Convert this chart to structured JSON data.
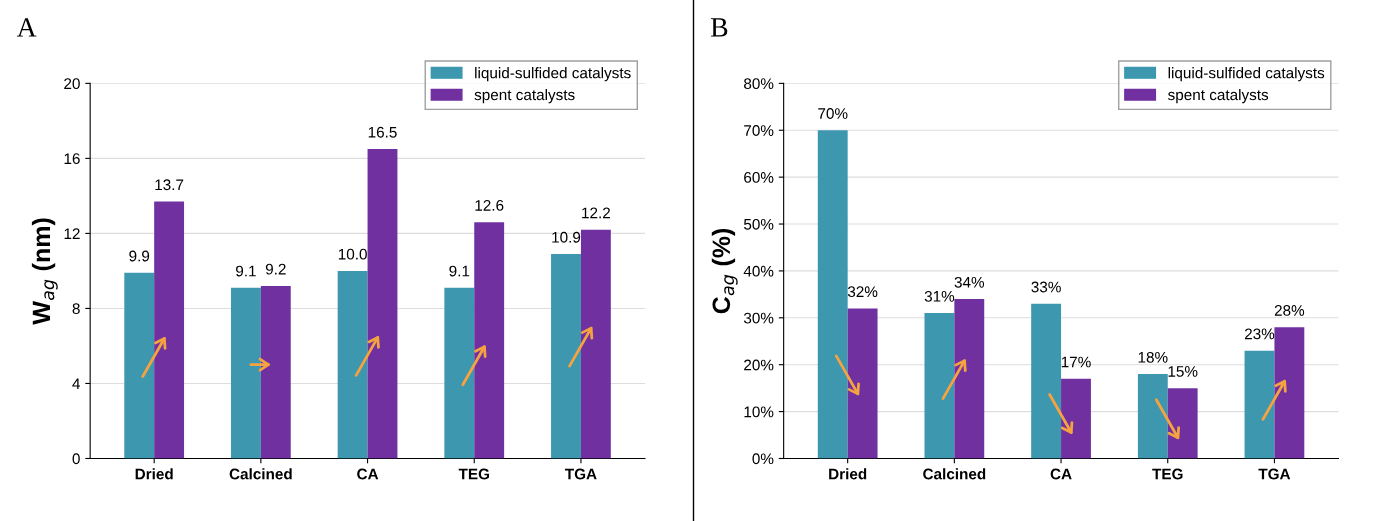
{
  "chart_data": [
    {
      "type": "bar",
      "title": "A",
      "ylabel": "W$_{ag}$ (nm)",
      "categories": [
        "Dried",
        "Calcined",
        "CA",
        "TEG",
        "TGA"
      ],
      "series": [
        {
          "name": "liquid-sulfided catalysts",
          "color": "#3d97ae",
          "values": [
            9.9,
            9.1,
            10.0,
            9.1,
            10.9
          ],
          "value_labels": [
            "9.9",
            "9.1",
            "10.0",
            "9.1",
            "10.9"
          ]
        },
        {
          "name": "spent catalysts",
          "color": "#7030a0",
          "values": [
            13.7,
            9.2,
            16.5,
            12.6,
            12.2
          ],
          "value_labels": [
            "13.7",
            "9.2",
            "16.5",
            "12.6",
            "12.2"
          ]
        }
      ],
      "ylim": [
        0,
        20
      ],
      "yticks": [
        0,
        4,
        8,
        12,
        16,
        20
      ],
      "grid": "y",
      "legend": "top right"
    },
    {
      "type": "bar",
      "title": "B",
      "ylabel": "C$_{ag}$ (%)",
      "categories": [
        "Dried",
        "Calcined",
        "CA",
        "TEG",
        "TGA"
      ],
      "series": [
        {
          "name": "liquid-sulfided catalysts",
          "color": "#3d97ae",
          "values": [
            70,
            31,
            33,
            18,
            23
          ],
          "value_labels": [
            "70%",
            "31%",
            "33%",
            "18%",
            "23%"
          ]
        },
        {
          "name": "spent catalysts",
          "color": "#7030a0",
          "values": [
            32,
            34,
            17,
            15,
            28
          ],
          "value_labels": [
            "32%",
            "34%",
            "17%",
            "15%",
            "28%"
          ]
        }
      ],
      "ylim": [
        0,
        80
      ],
      "yticks": [
        {
          "value": 0,
          "label": "0%"
        },
        {
          "value": 10,
          "label": "10%"
        },
        {
          "value": 20,
          "label": "20%"
        },
        {
          "value": 30,
          "label": "30%"
        },
        {
          "value": 40,
          "label": "40%"
        },
        {
          "value": 50,
          "label": "50%"
        },
        {
          "value": 60,
          "label": "60%"
        },
        {
          "value": 70,
          "label": "70%"
        },
        {
          "value": 80,
          "label": "80%"
        }
      ],
      "grid": "y",
      "legend": "top right"
    }
  ]
}
